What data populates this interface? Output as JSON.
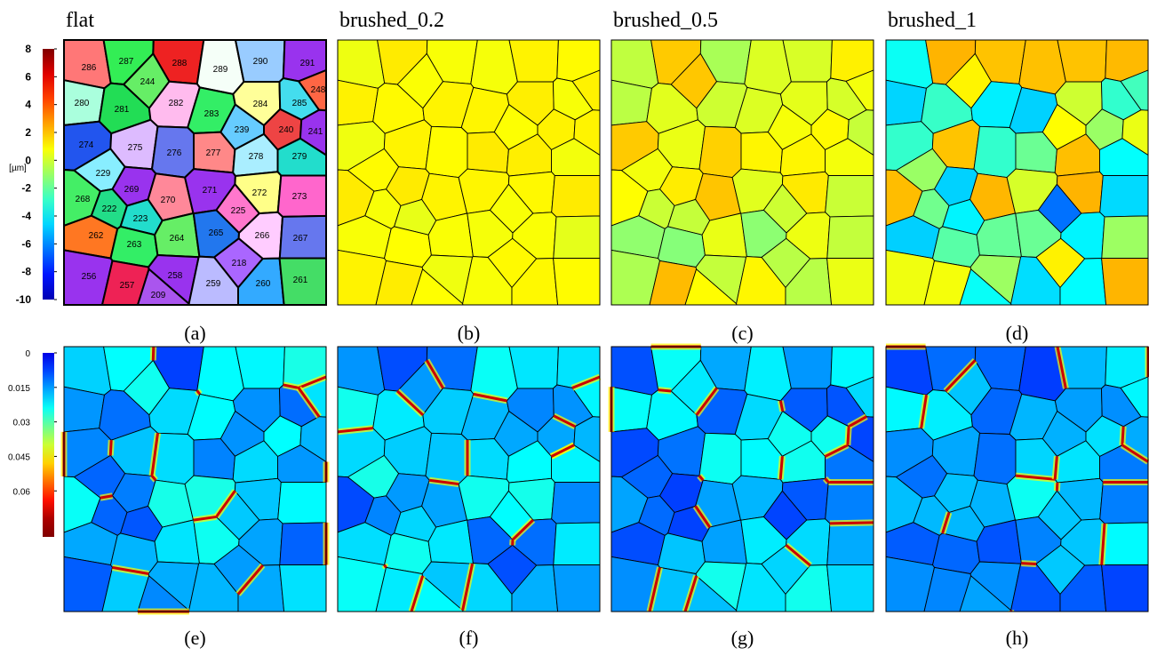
{
  "panels": [
    {
      "title": "flat",
      "label": "(a)"
    },
    {
      "title": "brushed_0.2",
      "label": "(b)"
    },
    {
      "title": "brushed_0.5",
      "label": "(c)"
    },
    {
      "title": "brushed_1",
      "label": "(d)"
    },
    {
      "label": "(e)"
    },
    {
      "label": "(f)"
    },
    {
      "label": "(g)"
    },
    {
      "label": "(h)"
    }
  ],
  "height_colorbar": {
    "unit": "[µm]",
    "lim": [
      -10,
      8
    ],
    "ticks": [
      8,
      6,
      4,
      2,
      0,
      -2,
      -4,
      -6,
      -8,
      -10
    ]
  },
  "strain_colorbar": {
    "lim": [
      0,
      0.08
    ],
    "ticks": [
      0,
      0.015,
      0.03,
      0.045,
      0.06
    ]
  },
  "grains": [
    "286",
    "287",
    "288",
    "289",
    "290",
    "291",
    "244",
    "248",
    "280",
    "281",
    "282",
    "283",
    "284",
    "285",
    "239",
    "240",
    "241",
    "274",
    "275",
    "276",
    "277",
    "278",
    "279",
    "229",
    "269",
    "270",
    "271",
    "272",
    "273",
    "268",
    "222",
    "225",
    "223",
    "262",
    "263",
    "264",
    "265",
    "266",
    "267",
    "218",
    "256",
    "257",
    "258",
    "259",
    "260",
    "261",
    "209"
  ]
}
